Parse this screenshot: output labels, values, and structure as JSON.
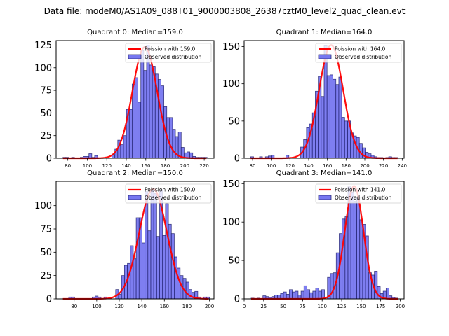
{
  "suptitle": "Data file: modeM0/AS1A09_088T01_9000003808_26387cztM0_level2_quad_clean.evt",
  "colors": {
    "bar_fill": "#7777f0",
    "bar_edge": "#1a1a66",
    "poisson_line": "#ff0000"
  },
  "chart_data": [
    {
      "type": "bar",
      "title": "Quadrant 0: Median=159.0",
      "legend": [
        "Poission with 159.0",
        "Observed distribution"
      ],
      "legend_position": "top-right",
      "median": 159.0,
      "xlim": [
        68,
        230
      ],
      "ylim": [
        0,
        130
      ],
      "xticks": [
        80,
        100,
        120,
        140,
        160,
        180,
        200,
        220
      ],
      "yticks": [
        0,
        25,
        50,
        75,
        100,
        125
      ],
      "bin_start": 75,
      "bin_width": 2.96,
      "counts": [
        1,
        1,
        0,
        1,
        0,
        0,
        1,
        2,
        2,
        5,
        1,
        3,
        0,
        0,
        0,
        0,
        0,
        4,
        10,
        20,
        15,
        25,
        54,
        54,
        82,
        89,
        62,
        119,
        97,
        125,
        103,
        101,
        93,
        87,
        80,
        57,
        45,
        45,
        32,
        24,
        29,
        12,
        6,
        7,
        6,
        2,
        1,
        1,
        1,
        1
      ],
      "poisson_peak": 123
    },
    {
      "type": "bar",
      "title": "Quadrant 1: Median=164.0",
      "legend": [
        "Poission with 164.0",
        "Observed distribution"
      ],
      "legend_position": "top-right",
      "median": 164.0,
      "xlim": [
        71,
        242
      ],
      "ylim": [
        0,
        158
      ],
      "xticks": [
        80,
        100,
        120,
        140,
        160,
        180,
        200,
        220,
        240
      ],
      "yticks": [
        0,
        50,
        100,
        150
      ],
      "bin_start": 78,
      "bin_width": 3.14,
      "counts": [
        2,
        0,
        0,
        2,
        0,
        2,
        3,
        4,
        0,
        0,
        0,
        0,
        4,
        0,
        0,
        0,
        0,
        15,
        25,
        41,
        46,
        61,
        90,
        110,
        83,
        151,
        111,
        112,
        106,
        99,
        109,
        55,
        50,
        50,
        34,
        30,
        28,
        20,
        14,
        8,
        6,
        4,
        2,
        1,
        1,
        0,
        1,
        2,
        1,
        1
      ],
      "poisson_peak": 152
    },
    {
      "type": "bar",
      "title": "Quadrant 2: Median=150.0",
      "legend": [
        "Poission with 150.0",
        "Observed distribution"
      ],
      "legend_position": "top-right",
      "median": 150.0,
      "xlim": [
        64,
        204
      ],
      "ylim": [
        0,
        126
      ],
      "xticks": [
        80,
        100,
        120,
        140,
        160,
        180,
        200
      ],
      "yticks": [
        0,
        25,
        50,
        75,
        100
      ],
      "bin_start": 70,
      "bin_width": 2.6,
      "counts": [
        0,
        0,
        2,
        2,
        0,
        0,
        0,
        0,
        0,
        0,
        2,
        3,
        2,
        0,
        2,
        0,
        0,
        0,
        10,
        5,
        25,
        36,
        38,
        57,
        43,
        87,
        87,
        60,
        115,
        73,
        117,
        113,
        67,
        117,
        68,
        102,
        80,
        70,
        45,
        33,
        25,
        22,
        18,
        10,
        7,
        8,
        2,
        0,
        2,
        2
      ],
      "poisson_peak": 118
    },
    {
      "type": "bar",
      "title": "Quadrant 3: Median=141.0",
      "legend": [
        "Poission with 141.0",
        "Observed distribution"
      ],
      "legend_position": "top-right",
      "median": 141.0,
      "xlim": [
        0,
        205
      ],
      "ylim": [
        0,
        153
      ],
      "xticks": [
        0,
        25,
        50,
        75,
        100,
        125,
        150,
        175,
        200
      ],
      "yticks": [
        0,
        50,
        100,
        150
      ],
      "bin_start": 9,
      "bin_width": 3.76,
      "counts": [
        1,
        0,
        1,
        0,
        4,
        3,
        2,
        3,
        5,
        5,
        7,
        9,
        6,
        12,
        9,
        10,
        5,
        10,
        17,
        12,
        8,
        10,
        14,
        10,
        12,
        0,
        28,
        33,
        34,
        60,
        85,
        104,
        107,
        146,
        139,
        127,
        132,
        103,
        97,
        82,
        34,
        31,
        36,
        16,
        7,
        10,
        14,
        4,
        2,
        1
      ],
      "poisson_peak": 147
    }
  ]
}
